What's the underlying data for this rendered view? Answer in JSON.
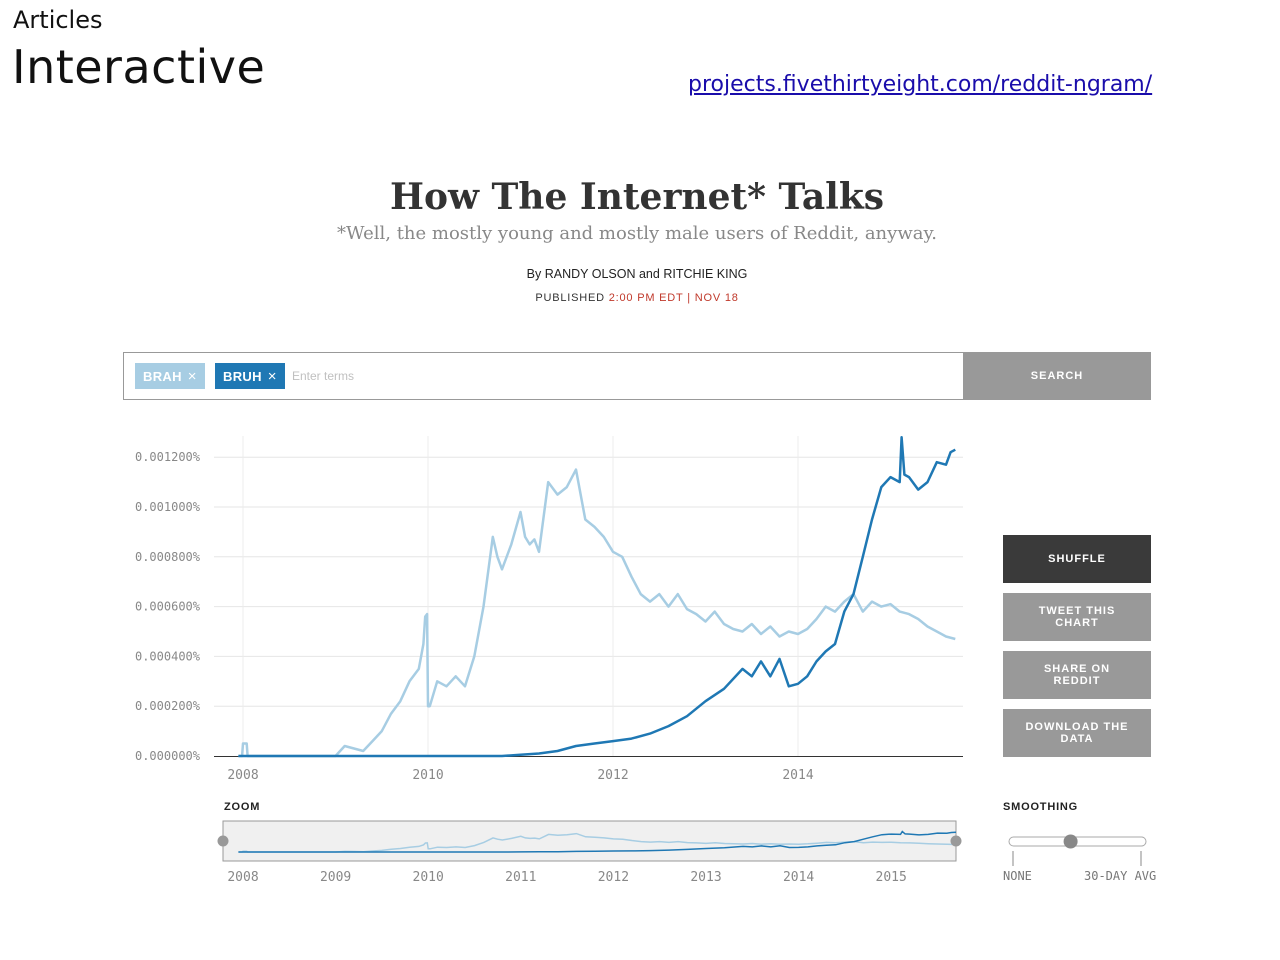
{
  "slide": {
    "kicker": "Articles",
    "title": "Interactive",
    "link": "projects.fivethirtyeight.com/reddit-ngram/"
  },
  "article": {
    "headline": "How The Internet* Talks",
    "dek": "*Well, the mostly young and mostly male users of Reddit, anyway.",
    "byline_prefix": "By",
    "author1": "RANDY OLSON",
    "byline_and": "and",
    "author2": "RITCHIE KING",
    "published_label": "PUBLISHED",
    "published_time": "2:00 PM EDT",
    "published_sep": "|",
    "published_date": "NOV 18"
  },
  "search": {
    "chips": [
      {
        "label": "BRAH",
        "remove": "×",
        "color": "#a7cde3"
      },
      {
        "label": "BRUH",
        "remove": "×",
        "color": "#1f78b4"
      }
    ],
    "placeholder": "Enter terms",
    "button": "SEARCH"
  },
  "actions": {
    "shuffle": "SHUFFLE",
    "tweet": "TWEET THIS CHART",
    "reddit": "SHARE ON REDDIT",
    "download": "DOWNLOAD THE DATA"
  },
  "zoom": {
    "label": "ZOOM",
    "ticks": [
      "2008",
      "2009",
      "2010",
      "2011",
      "2012",
      "2013",
      "2014",
      "2015"
    ]
  },
  "smoothing": {
    "label": "SMOOTHING",
    "min_label": "NONE",
    "max_label": "30-DAY AVG",
    "value_fraction": 0.45
  },
  "colors": {
    "brah": "#a7cde3",
    "bruh": "#1f78b4",
    "dark_button": "#3a3a3a",
    "grey_button": "#999999"
  },
  "chart_data": {
    "type": "line",
    "title": "",
    "xlabel": "",
    "ylabel": "",
    "xlim": [
      2007.95,
      2015.75
    ],
    "ylim": [
      0,
      0.0013
    ],
    "yticks": [
      "0.000000%",
      "0.000200%",
      "0.000400%",
      "0.000600%",
      "0.000800%",
      "0.001000%",
      "0.001200%"
    ],
    "ytick_values": [
      0,
      0.0002,
      0.0004,
      0.0006,
      0.0008,
      0.001,
      0.0012
    ],
    "xticks": [
      "2008",
      "2010",
      "2012",
      "2014"
    ],
    "xtick_values": [
      2008,
      2010,
      2012,
      2014
    ],
    "grid": true,
    "series": [
      {
        "name": "BRAH",
        "color": "#a7cde3",
        "x": [
          2007.95,
          2007.99,
          2008.0,
          2008.04,
          2008.05,
          2008.5,
          2009.0,
          2009.1,
          2009.2,
          2009.3,
          2009.4,
          2009.5,
          2009.6,
          2009.7,
          2009.8,
          2009.9,
          2009.95,
          2009.97,
          2009.99,
          2010.0,
          2010.02,
          2010.1,
          2010.2,
          2010.3,
          2010.4,
          2010.5,
          2010.6,
          2010.7,
          2010.75,
          2010.8,
          2010.9,
          2011.0,
          2011.05,
          2011.1,
          2011.15,
          2011.2,
          2011.3,
          2011.4,
          2011.5,
          2011.6,
          2011.7,
          2011.8,
          2011.9,
          2012.0,
          2012.1,
          2012.2,
          2012.3,
          2012.4,
          2012.5,
          2012.6,
          2012.7,
          2012.8,
          2012.9,
          2013.0,
          2013.1,
          2013.2,
          2013.3,
          2013.4,
          2013.5,
          2013.6,
          2013.7,
          2013.8,
          2013.9,
          2014.0,
          2014.1,
          2014.2,
          2014.3,
          2014.4,
          2014.5,
          2014.6,
          2014.7,
          2014.8,
          2014.9,
          2015.0,
          2015.1,
          2015.2,
          2015.3,
          2015.4,
          2015.5,
          2015.6,
          2015.7
        ],
        "y": [
          0,
          0,
          5e-05,
          5e-05,
          0,
          0,
          0,
          4e-05,
          3e-05,
          2e-05,
          6e-05,
          0.0001,
          0.00017,
          0.00022,
          0.0003,
          0.00035,
          0.00045,
          0.00056,
          0.00057,
          0.0002,
          0.0002,
          0.0003,
          0.00028,
          0.00032,
          0.00028,
          0.0004,
          0.0006,
          0.00088,
          0.0008,
          0.00075,
          0.00085,
          0.00098,
          0.00088,
          0.00085,
          0.00087,
          0.00082,
          0.0011,
          0.00105,
          0.00108,
          0.00115,
          0.00095,
          0.00092,
          0.00088,
          0.00082,
          0.0008,
          0.00072,
          0.00065,
          0.00062,
          0.00065,
          0.0006,
          0.00065,
          0.00059,
          0.00057,
          0.00054,
          0.00058,
          0.00053,
          0.00051,
          0.0005,
          0.00053,
          0.00049,
          0.00052,
          0.00048,
          0.0005,
          0.00049,
          0.00051,
          0.00055,
          0.0006,
          0.00058,
          0.00062,
          0.00065,
          0.00058,
          0.00062,
          0.0006,
          0.00061,
          0.00058,
          0.00057,
          0.00055,
          0.00052,
          0.0005,
          0.00048,
          0.00047
        ]
      },
      {
        "name": "BRUH",
        "color": "#1f78b4",
        "x": [
          2007.95,
          2010.8,
          2011.0,
          2011.2,
          2011.4,
          2011.6,
          2011.8,
          2012.0,
          2012.2,
          2012.4,
          2012.6,
          2012.8,
          2013.0,
          2013.2,
          2013.4,
          2013.5,
          2013.6,
          2013.7,
          2013.8,
          2013.9,
          2014.0,
          2014.1,
          2014.2,
          2014.3,
          2014.4,
          2014.5,
          2014.6,
          2014.7,
          2014.8,
          2014.9,
          2015.0,
          2015.1,
          2015.12,
          2015.15,
          2015.2,
          2015.3,
          2015.4,
          2015.5,
          2015.6,
          2015.65,
          2015.7
        ],
        "y": [
          0,
          0,
          5e-06,
          1e-05,
          2e-05,
          4e-05,
          5e-05,
          6e-05,
          7e-05,
          9e-05,
          0.00012,
          0.00016,
          0.00022,
          0.00027,
          0.00035,
          0.00032,
          0.00038,
          0.00032,
          0.00039,
          0.00028,
          0.00029,
          0.00032,
          0.00038,
          0.00042,
          0.00045,
          0.00058,
          0.00065,
          0.0008,
          0.00095,
          0.00108,
          0.00112,
          0.0011,
          0.00128,
          0.00113,
          0.00112,
          0.00107,
          0.0011,
          0.00118,
          0.00117,
          0.00122,
          0.00123
        ]
      }
    ]
  }
}
